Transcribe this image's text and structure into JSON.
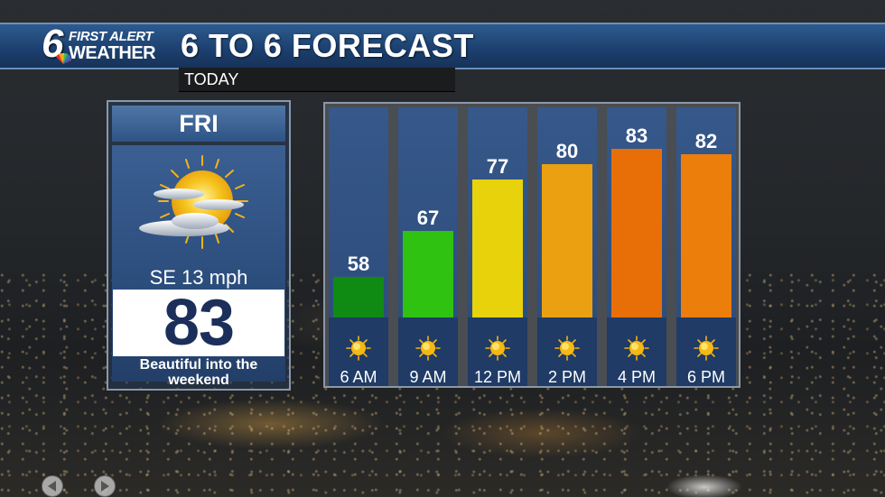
{
  "header": {
    "logo_number": "6",
    "logo_line1": "FIRST ALERT",
    "logo_line2": "WEATHER",
    "title": "6 TO 6 FORECAST"
  },
  "subheader": {
    "label": "TODAY"
  },
  "day_card": {
    "day": "FRI",
    "icon": "partly-cloudy-sun-icon",
    "wind": "SE 13 mph",
    "high": "83",
    "description": "Beautiful into the weekend"
  },
  "chart_data": {
    "type": "bar",
    "categories": [
      "6 AM",
      "9 AM",
      "12 PM",
      "2 PM",
      "4 PM",
      "6 PM"
    ],
    "values": [
      58,
      67,
      77,
      80,
      83,
      82
    ],
    "icons": [
      "sun-icon",
      "sun-icon",
      "sun-icon",
      "sun-icon",
      "sun-icon",
      "sun-icon"
    ],
    "colors": [
      "#0f8a12",
      "#2fc211",
      "#e7d20b",
      "#eba012",
      "#e86f08",
      "#ec7e0c"
    ],
    "grid": false,
    "legend": "none"
  },
  "nav": {
    "prev_icon": "arrow-left-icon",
    "next_icon": "arrow-right-icon"
  }
}
